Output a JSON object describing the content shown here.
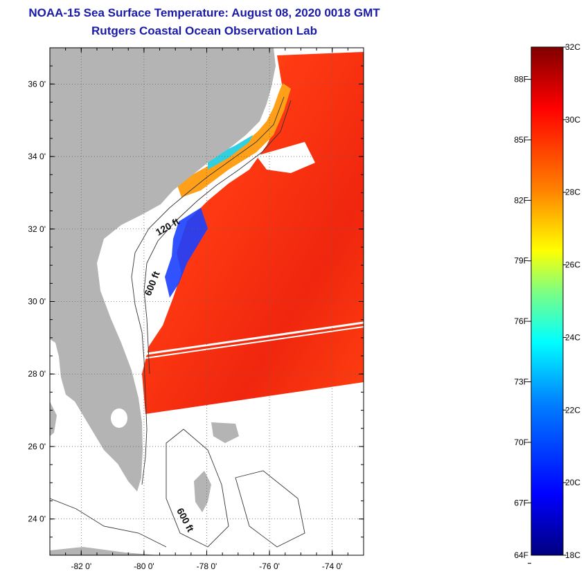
{
  "header": {
    "title": "NOAA-15 Sea Surface Temperature:  August 08, 2020 0018 GMT",
    "subtitle": "Rutgers Coastal Ocean Observation Lab"
  },
  "map": {
    "lon_range": [
      -83,
      -73
    ],
    "lat_range": [
      23,
      37
    ],
    "lat_ticks": [
      {
        "value": 36,
        "label": "36 0'"
      },
      {
        "value": 34,
        "label": "34 0'"
      },
      {
        "value": 32,
        "label": "32 0'"
      },
      {
        "value": 30,
        "label": "30 0'"
      },
      {
        "value": 28,
        "label": "28 0'"
      },
      {
        "value": 26,
        "label": "26 0'"
      },
      {
        "value": 24,
        "label": "24 0'"
      }
    ],
    "lon_ticks": [
      {
        "value": -82,
        "label": "-82 0'"
      },
      {
        "value": -80,
        "label": "-80 0'"
      },
      {
        "value": -78,
        "label": "-78 0'"
      },
      {
        "value": -76,
        "label": "-76 0'"
      },
      {
        "value": -74,
        "label": "-74 0'"
      }
    ],
    "contour_labels": [
      "120 ft",
      "600 ft",
      "600 ft"
    ],
    "colors": {
      "land": "#b4b4b4",
      "water_bg": "#ffffff",
      "sst_warm": "#ff3a10",
      "sst_hot": "#e81c0c",
      "sst_cool": "#ff9a10",
      "sst_cold": "#1a3cff"
    }
  },
  "colorbar": {
    "range_c": [
      18,
      32
    ],
    "celsius_labels": [
      "32C",
      "30C",
      "28C",
      "26C",
      "24C",
      "22C",
      "20C",
      "18C"
    ],
    "fahrenheit_labels": [
      "88F",
      "85F",
      "82F",
      "79F",
      "76F",
      "73F",
      "70F",
      "67F",
      "64F"
    ],
    "colors": [
      "#00007f",
      "#0000ff",
      "#0080ff",
      "#00ffff",
      "#80ff80",
      "#ffff00",
      "#ff8000",
      "#ff0000",
      "#800000"
    ]
  }
}
